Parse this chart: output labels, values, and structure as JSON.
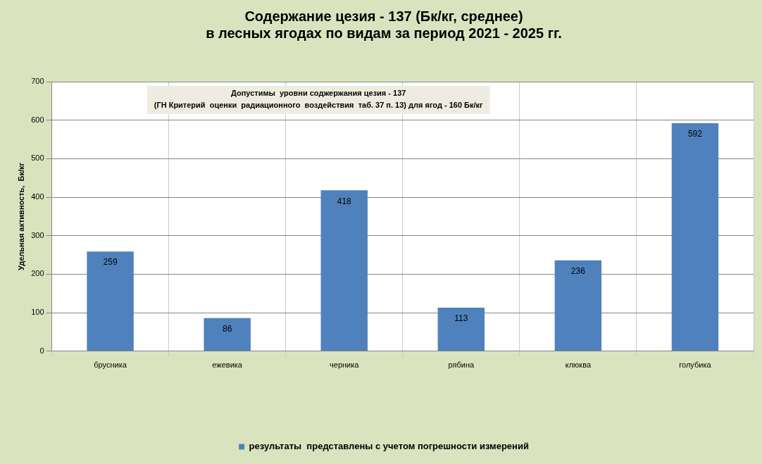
{
  "chart_data": {
    "type": "bar",
    "title": [
      "Содержание цезия - 137 (Бк/кг, среднее)",
      "в лесных ягодах по видам за период 2021 - 2025 гг."
    ],
    "ylabel": "Удельная активность,  Бк/кг",
    "categories": [
      "брусника",
      "ежевика",
      "черника",
      "рябина",
      "клюква",
      "голубика"
    ],
    "series": [
      {
        "name": "результаты  представлены с учетом погрешности измерений",
        "color": "#4f81bd",
        "values": [
          259,
          86,
          418,
          113,
          236,
          592
        ]
      }
    ],
    "ylim": [
      0,
      700
    ],
    "yticks": [
      0,
      100,
      200,
      300,
      400,
      500,
      600,
      700
    ],
    "grid": true,
    "legend": "bottom",
    "data_labels": true,
    "annotations": [
      "Допустимы  уровни соджержания цезия - 137",
      "(ГН Критерий  оценки  радиационного  воздействия  таб. 37 п. 13) для ягод - 160 Бк/кг"
    ]
  }
}
